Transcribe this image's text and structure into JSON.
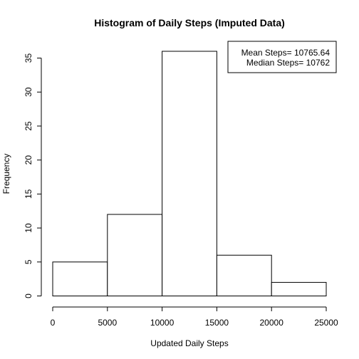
{
  "chart_data": {
    "type": "bar",
    "title": "Histogram of Daily Steps (Imputed Data)",
    "xlabel": "Updated Daily Steps",
    "ylabel": "Frequency",
    "bins": [
      {
        "start": 0,
        "end": 5000,
        "count": 5
      },
      {
        "start": 5000,
        "end": 10000,
        "count": 12
      },
      {
        "start": 10000,
        "end": 15000,
        "count": 36
      },
      {
        "start": 15000,
        "end": 20000,
        "count": 6
      },
      {
        "start": 20000,
        "end": 25000,
        "count": 2
      }
    ],
    "xlim": [
      0,
      25000
    ],
    "ylim": [
      0,
      36
    ],
    "x_ticks": [
      0,
      5000,
      10000,
      15000,
      20000,
      25000
    ],
    "y_ticks": [
      0,
      5,
      10,
      15,
      20,
      25,
      30,
      35
    ],
    "grid": false,
    "legend_position": "top-right",
    "legend": [
      "Mean Steps= 10765.64",
      "Median Steps= 10762"
    ]
  }
}
